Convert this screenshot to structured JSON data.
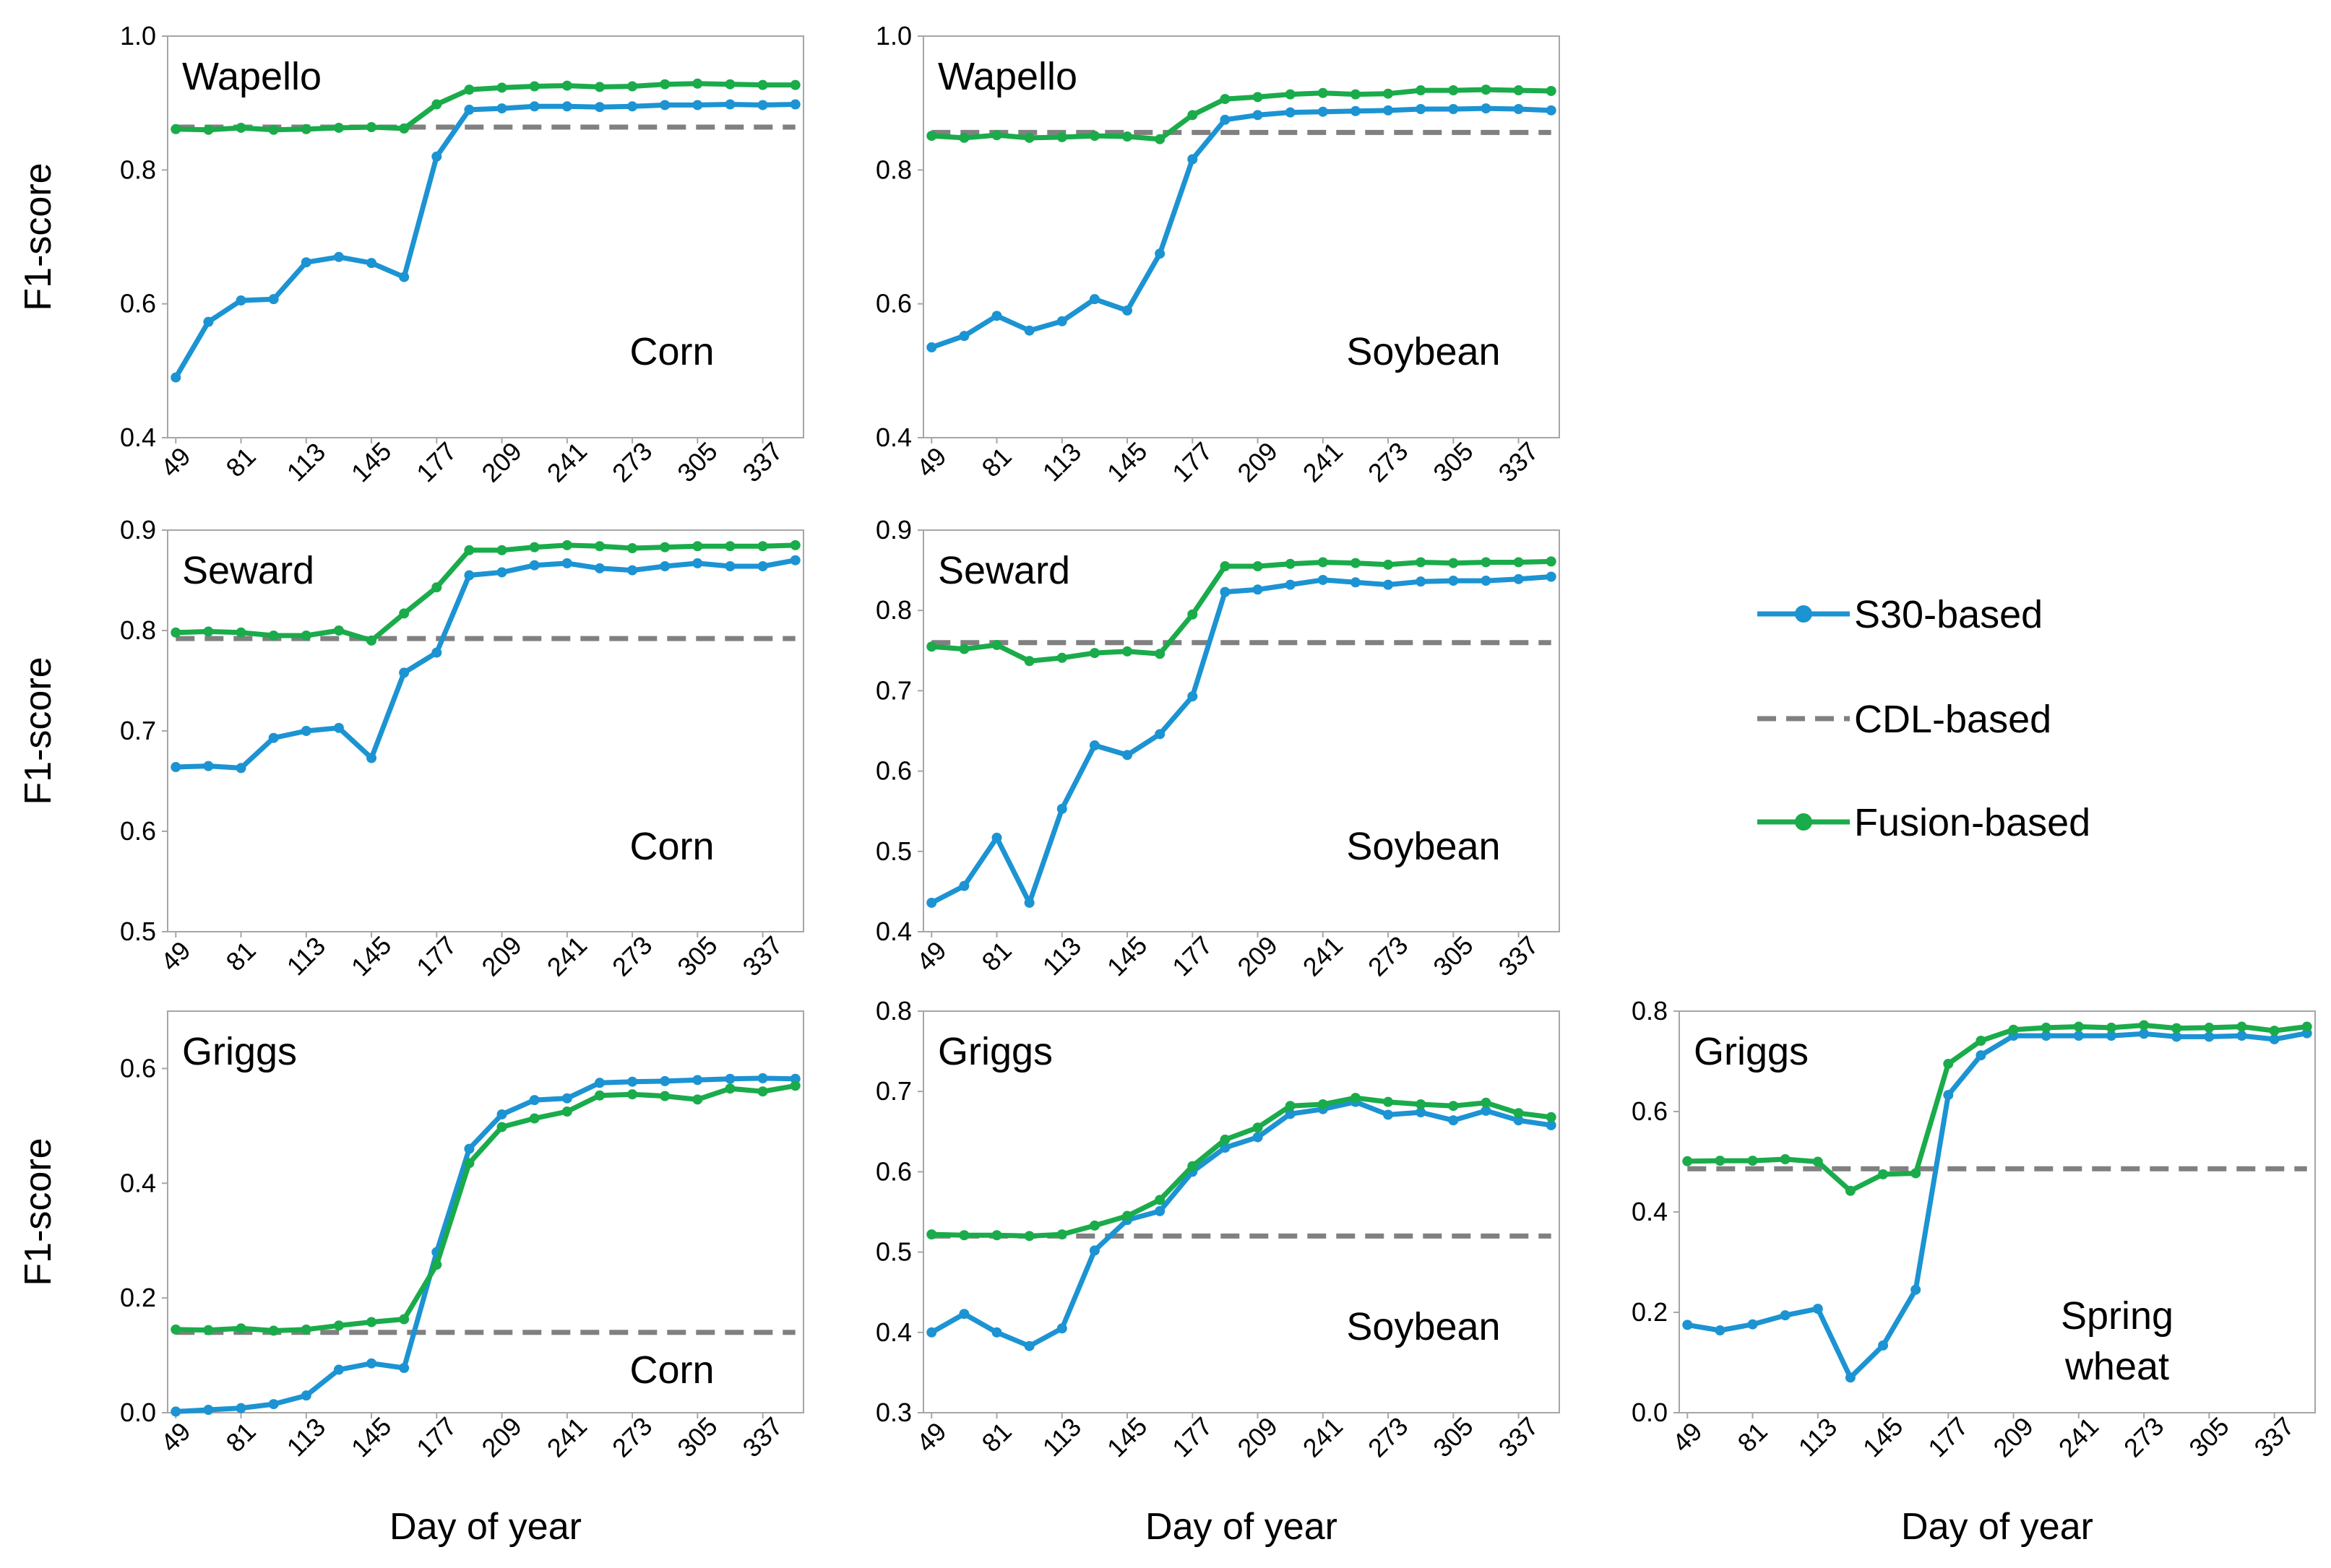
{
  "legend": [
    {
      "name": "S30-based",
      "color": "#1c93d2",
      "dashed": false,
      "markers": true
    },
    {
      "name": "CDL-based",
      "color": "#808080",
      "dashed": true,
      "markers": false
    },
    {
      "name": "Fusion-based",
      "color": "#1aab4a",
      "dashed": false,
      "markers": true
    }
  ],
  "shared": {
    "xlabel": "Day of year",
    "ylabel": "F1-score",
    "x_ticks": [
      "49",
      "81",
      "113",
      "145",
      "177",
      "209",
      "241",
      "273",
      "305",
      "337"
    ]
  },
  "chart_data": [
    {
      "type": "line",
      "title": "Wapello",
      "crop": [
        "Corn"
      ],
      "xlabel": "",
      "ylabel": "F1-score",
      "ylim": [
        0.4,
        1.0
      ],
      "y_ticks": [
        "0.4",
        "0.6",
        "0.8",
        "1.0"
      ],
      "x": [
        49,
        65,
        81,
        97,
        113,
        129,
        145,
        161,
        177,
        193,
        209,
        225,
        241,
        257,
        273,
        289,
        305,
        321,
        337,
        353
      ],
      "series": [
        {
          "name": "S30-based",
          "values": [
            0.49,
            0.573,
            0.605,
            0.607,
            0.662,
            0.67,
            0.661,
            0.64,
            0.82,
            0.89,
            0.892,
            0.895,
            0.895,
            0.894,
            0.895,
            0.897,
            0.897,
            0.898,
            0.897,
            0.898
          ]
        },
        {
          "name": "CDL-based",
          "values": [
            0.864,
            0.864,
            0.864,
            0.864,
            0.864,
            0.864,
            0.864,
            0.864,
            0.864,
            0.864,
            0.864,
            0.864,
            0.864,
            0.864,
            0.864,
            0.864,
            0.864,
            0.864,
            0.864,
            0.864
          ]
        },
        {
          "name": "Fusion-based",
          "values": [
            0.861,
            0.86,
            0.863,
            0.86,
            0.861,
            0.863,
            0.864,
            0.862,
            0.898,
            0.92,
            0.923,
            0.925,
            0.926,
            0.924,
            0.925,
            0.928,
            0.929,
            0.928,
            0.927,
            0.927
          ]
        }
      ]
    },
    {
      "type": "line",
      "title": "Wapello",
      "crop": [
        "Soybean"
      ],
      "xlabel": "",
      "ylabel": "",
      "ylim": [
        0.4,
        1.0
      ],
      "y_ticks": [
        "0.4",
        "0.6",
        "0.8",
        "1.0"
      ],
      "x": [
        49,
        65,
        81,
        97,
        113,
        129,
        145,
        161,
        177,
        193,
        209,
        225,
        241,
        257,
        273,
        289,
        305,
        321,
        337,
        353
      ],
      "series": [
        {
          "name": "S30-based",
          "values": [
            0.535,
            0.552,
            0.582,
            0.56,
            0.574,
            0.607,
            0.59,
            0.675,
            0.816,
            0.875,
            0.882,
            0.886,
            0.887,
            0.888,
            0.889,
            0.891,
            0.891,
            0.892,
            0.891,
            0.889
          ]
        },
        {
          "name": "CDL-based",
          "values": [
            0.856,
            0.856,
            0.856,
            0.856,
            0.856,
            0.856,
            0.856,
            0.856,
            0.856,
            0.856,
            0.856,
            0.856,
            0.856,
            0.856,
            0.856,
            0.856,
            0.856,
            0.856,
            0.856,
            0.856
          ]
        },
        {
          "name": "Fusion-based",
          "values": [
            0.851,
            0.848,
            0.852,
            0.848,
            0.849,
            0.851,
            0.85,
            0.846,
            0.882,
            0.906,
            0.909,
            0.913,
            0.915,
            0.913,
            0.914,
            0.919,
            0.919,
            0.92,
            0.919,
            0.918
          ]
        }
      ]
    },
    {
      "type": "line",
      "title": "Seward",
      "crop": [
        "Corn"
      ],
      "xlabel": "",
      "ylabel": "F1-score",
      "ylim": [
        0.5,
        0.9
      ],
      "y_ticks": [
        "0.5",
        "0.6",
        "0.7",
        "0.8",
        "0.9"
      ],
      "x": [
        49,
        65,
        81,
        97,
        113,
        129,
        145,
        161,
        177,
        193,
        209,
        225,
        241,
        257,
        273,
        289,
        305,
        321,
        337,
        353
      ],
      "series": [
        {
          "name": "S30-based",
          "values": [
            0.664,
            0.665,
            0.663,
            0.693,
            0.7,
            0.703,
            0.673,
            0.758,
            0.778,
            0.855,
            0.858,
            0.865,
            0.867,
            0.862,
            0.86,
            0.864,
            0.867,
            0.864,
            0.864,
            0.87
          ]
        },
        {
          "name": "CDL-based",
          "values": [
            0.792,
            0.792,
            0.792,
            0.792,
            0.792,
            0.792,
            0.792,
            0.792,
            0.792,
            0.792,
            0.792,
            0.792,
            0.792,
            0.792,
            0.792,
            0.792,
            0.792,
            0.792,
            0.792,
            0.792
          ]
        },
        {
          "name": "Fusion-based",
          "values": [
            0.798,
            0.799,
            0.798,
            0.795,
            0.795,
            0.8,
            0.79,
            0.817,
            0.843,
            0.88,
            0.88,
            0.883,
            0.885,
            0.884,
            0.882,
            0.883,
            0.884,
            0.884,
            0.884,
            0.885
          ]
        }
      ]
    },
    {
      "type": "line",
      "title": "Seward",
      "crop": [
        "Soybean"
      ],
      "xlabel": "",
      "ylabel": "",
      "ylim": [
        0.4,
        0.9
      ],
      "y_ticks": [
        "0.4",
        "0.5",
        "0.6",
        "0.7",
        "0.8",
        "0.9"
      ],
      "x": [
        49,
        65,
        81,
        97,
        113,
        129,
        145,
        161,
        177,
        193,
        209,
        225,
        241,
        257,
        273,
        289,
        305,
        321,
        337,
        353
      ],
      "series": [
        {
          "name": "S30-based",
          "values": [
            0.436,
            0.457,
            0.517,
            0.436,
            0.553,
            0.632,
            0.62,
            0.646,
            0.693,
            0.823,
            0.826,
            0.832,
            0.838,
            0.835,
            0.832,
            0.836,
            0.837,
            0.837,
            0.839,
            0.842
          ]
        },
        {
          "name": "CDL-based",
          "values": [
            0.76,
            0.76,
            0.76,
            0.76,
            0.76,
            0.76,
            0.76,
            0.76,
            0.76,
            0.76,
            0.76,
            0.76,
            0.76,
            0.76,
            0.76,
            0.76,
            0.76,
            0.76,
            0.76,
            0.76
          ]
        },
        {
          "name": "Fusion-based",
          "values": [
            0.755,
            0.752,
            0.757,
            0.737,
            0.741,
            0.747,
            0.749,
            0.746,
            0.795,
            0.855,
            0.855,
            0.858,
            0.86,
            0.859,
            0.857,
            0.86,
            0.859,
            0.86,
            0.86,
            0.861
          ]
        }
      ]
    },
    {
      "type": "line",
      "title": "Griggs",
      "crop": [
        "Corn"
      ],
      "xlabel": "Day of year",
      "ylabel": "F1-score",
      "ylim": [
        0.0,
        0.7
      ],
      "y_ticks": [
        "0.0",
        "0.2",
        "0.4",
        "0.6"
      ],
      "x": [
        49,
        65,
        81,
        97,
        113,
        129,
        145,
        161,
        177,
        193,
        209,
        225,
        241,
        257,
        273,
        289,
        305,
        321,
        337,
        353
      ],
      "series": [
        {
          "name": "S30-based",
          "values": [
            0.002,
            0.005,
            0.008,
            0.015,
            0.03,
            0.075,
            0.086,
            0.078,
            0.28,
            0.46,
            0.52,
            0.545,
            0.548,
            0.575,
            0.577,
            0.578,
            0.58,
            0.582,
            0.583,
            0.582
          ]
        },
        {
          "name": "CDL-based",
          "values": [
            0.14,
            0.14,
            0.14,
            0.14,
            0.14,
            0.14,
            0.14,
            0.14,
            0.14,
            0.14,
            0.14,
            0.14,
            0.14,
            0.14,
            0.14,
            0.14,
            0.14,
            0.14,
            0.14,
            0.14
          ]
        },
        {
          "name": "Fusion-based",
          "values": [
            0.145,
            0.144,
            0.147,
            0.143,
            0.145,
            0.152,
            0.158,
            0.163,
            0.258,
            0.435,
            0.498,
            0.513,
            0.525,
            0.553,
            0.555,
            0.552,
            0.546,
            0.565,
            0.56,
            0.57
          ]
        }
      ]
    },
    {
      "type": "line",
      "title": "Griggs",
      "crop": [
        "Soybean"
      ],
      "xlabel": "Day of year",
      "ylabel": "",
      "ylim": [
        0.3,
        0.8
      ],
      "y_ticks": [
        "0.3",
        "0.4",
        "0.5",
        "0.6",
        "0.7",
        "0.8"
      ],
      "x": [
        49,
        65,
        81,
        97,
        113,
        129,
        145,
        161,
        177,
        193,
        209,
        225,
        241,
        257,
        273,
        289,
        305,
        321,
        337,
        353
      ],
      "series": [
        {
          "name": "S30-based",
          "values": [
            0.4,
            0.423,
            0.4,
            0.383,
            0.405,
            0.502,
            0.54,
            0.551,
            0.6,
            0.63,
            0.643,
            0.672,
            0.678,
            0.687,
            0.671,
            0.674,
            0.664,
            0.676,
            0.664,
            0.658
          ]
        },
        {
          "name": "CDL-based",
          "values": [
            0.52,
            0.52,
            0.52,
            0.52,
            0.52,
            0.52,
            0.52,
            0.52,
            0.52,
            0.52,
            0.52,
            0.52,
            0.52,
            0.52,
            0.52,
            0.52,
            0.52,
            0.52,
            0.52,
            0.52
          ]
        },
        {
          "name": "Fusion-based",
          "values": [
            0.522,
            0.521,
            0.521,
            0.52,
            0.522,
            0.533,
            0.545,
            0.565,
            0.607,
            0.64,
            0.655,
            0.682,
            0.684,
            0.692,
            0.687,
            0.684,
            0.682,
            0.686,
            0.673,
            0.668
          ]
        }
      ]
    },
    {
      "type": "line",
      "title": "Griggs",
      "crop": [
        "Spring",
        "wheat"
      ],
      "xlabel": "Day of year",
      "ylabel": "",
      "ylim": [
        0.0,
        0.8
      ],
      "y_ticks": [
        "0.0",
        "0.2",
        "0.4",
        "0.6",
        "0.8"
      ],
      "x": [
        49,
        65,
        81,
        97,
        113,
        129,
        145,
        161,
        177,
        193,
        209,
        225,
        241,
        257,
        273,
        289,
        305,
        321,
        337,
        353
      ],
      "series": [
        {
          "name": "S30-based",
          "values": [
            0.175,
            0.164,
            0.176,
            0.194,
            0.207,
            0.07,
            0.134,
            0.245,
            0.633,
            0.712,
            0.751,
            0.751,
            0.751,
            0.751,
            0.755,
            0.749,
            0.749,
            0.751,
            0.744,
            0.756
          ]
        },
        {
          "name": "CDL-based",
          "values": [
            0.486,
            0.486,
            0.486,
            0.486,
            0.486,
            0.486,
            0.486,
            0.486,
            0.486,
            0.486,
            0.486,
            0.486,
            0.486,
            0.486,
            0.486,
            0.486,
            0.486,
            0.486,
            0.486,
            0.486
          ]
        },
        {
          "name": "Fusion-based",
          "values": [
            0.501,
            0.502,
            0.502,
            0.505,
            0.5,
            0.442,
            0.475,
            0.477,
            0.695,
            0.741,
            0.763,
            0.767,
            0.769,
            0.767,
            0.772,
            0.766,
            0.767,
            0.769,
            0.761,
            0.769
          ]
        }
      ]
    }
  ]
}
